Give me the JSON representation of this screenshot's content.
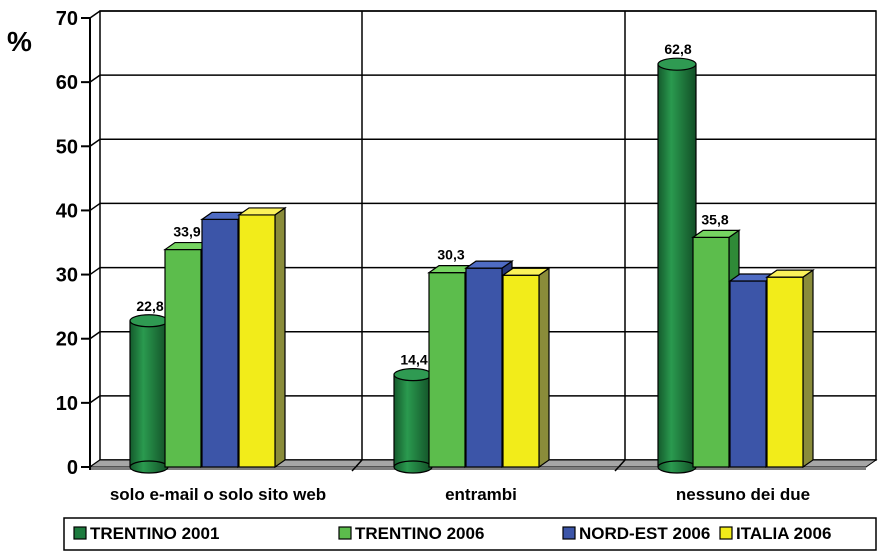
{
  "chart_data": {
    "type": "bar",
    "unit_label": "%",
    "ylim": [
      0,
      70
    ],
    "yticks": [
      "0",
      "10",
      "20",
      "30",
      "40",
      "50",
      "60",
      "70"
    ],
    "grid": "horizontal and vertical",
    "legend_position": "bottom",
    "categories": [
      "solo e-mail o solo sito web",
      "entrambi",
      "nessuno dei due"
    ],
    "series": [
      {
        "name": "TRENTINO 2001",
        "values": [
          22.8,
          14.4,
          62.8
        ],
        "labels": [
          "22,8",
          "14,4",
          "62,8"
        ],
        "shape": "cylinder",
        "color": "#1d7a3e",
        "top_color": "#2f9a52",
        "side_color": "#145a2c"
      },
      {
        "name": "TRENTINO 2006",
        "values": [
          33.9,
          30.3,
          35.8
        ],
        "labels": [
          "33,9",
          "30,3",
          "35,8"
        ],
        "shape": "box",
        "color": "#5cbd4c",
        "top_color": "#76d461",
        "side_color": "#2f8a37"
      },
      {
        "name": "NORD-EST 2006",
        "values": [
          38.6,
          31.0,
          29.0
        ],
        "labels": [
          "",
          "",
          ""
        ],
        "shape": "box",
        "color": "#3c55a8",
        "top_color": "#4f6cc4",
        "side_color": "#26377a"
      },
      {
        "name": "ITALIA 2006",
        "values": [
          39.3,
          29.9,
          29.6
        ],
        "labels": [
          "",
          "",
          ""
        ],
        "shape": "box",
        "color": "#f2ec1a",
        "top_color": "#fbf25a",
        "side_color": "#8a8c3a"
      }
    ]
  }
}
